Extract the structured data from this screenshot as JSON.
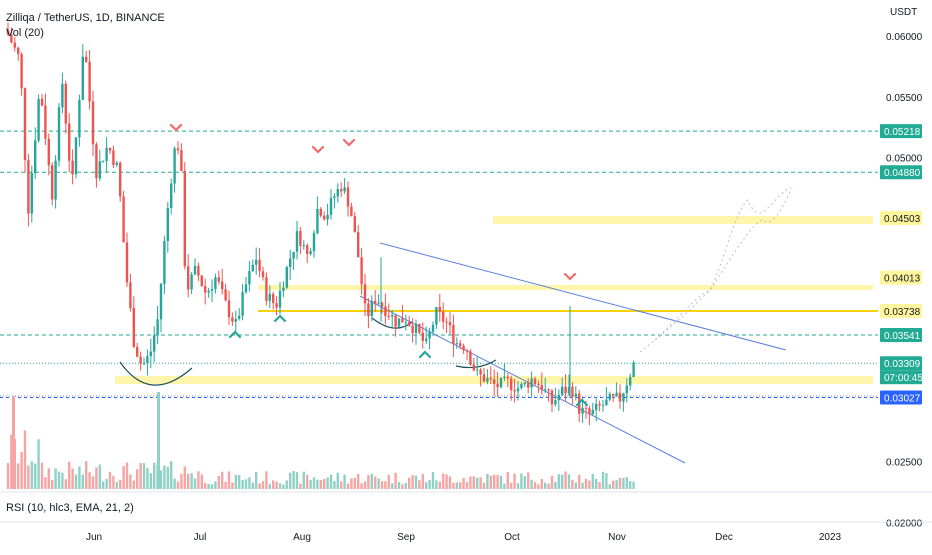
{
  "header": {
    "title": "Zilliqa / TetherUS, 1D, BINANCE",
    "volume_indicator": "Vol (20)",
    "rsi_indicator": "RSI (10, hlc3, EMA, 21, 2)"
  },
  "chart_data": {
    "type": "candlestick",
    "currency_label": "USDT",
    "y_axis_ticks": [
      "0.06000",
      "0.05500",
      "0.05000",
      "0.04500",
      "0.04000",
      "0.02500",
      "0.02000"
    ],
    "y_tick_values": [
      0.06,
      0.055,
      0.05,
      0.045,
      0.04,
      0.025,
      0.02
    ],
    "x_axis_labels": [
      "Jun",
      "Jul",
      "Aug",
      "Sep",
      "Oct",
      "Nov",
      "Dec",
      "2023"
    ],
    "price_labels": [
      {
        "text": "0.05218",
        "value": 0.05218,
        "color": "#22ab94",
        "line": "dashed"
      },
      {
        "text": "0.04880",
        "value": 0.0488,
        "color": "#22ab94",
        "line": "dashed"
      },
      {
        "text": "0.04503",
        "value": 0.04503,
        "color": "#fff59d",
        "line": "none"
      },
      {
        "text": "0.04013",
        "value": 0.04013,
        "color": "#fff59d",
        "line": "none"
      },
      {
        "text": "0.03738",
        "value": 0.03738,
        "color": "#fff59d",
        "line": "solid-yellow"
      },
      {
        "text": "0.03541",
        "value": 0.03541,
        "color": "#22ab94",
        "line": "dashed"
      },
      {
        "text": "0.03309",
        "value": 0.03309,
        "color": "#22ab94",
        "line": "dotted"
      },
      {
        "text": "0.03027",
        "value": 0.03027,
        "color": "#2962ff",
        "line": "dashed-blue"
      }
    ],
    "countdown": "07:00:45",
    "colors": {
      "up": "#26a69a",
      "down": "#ef5350",
      "trendline": "#5b7fde",
      "zone": "#fff59d"
    }
  }
}
